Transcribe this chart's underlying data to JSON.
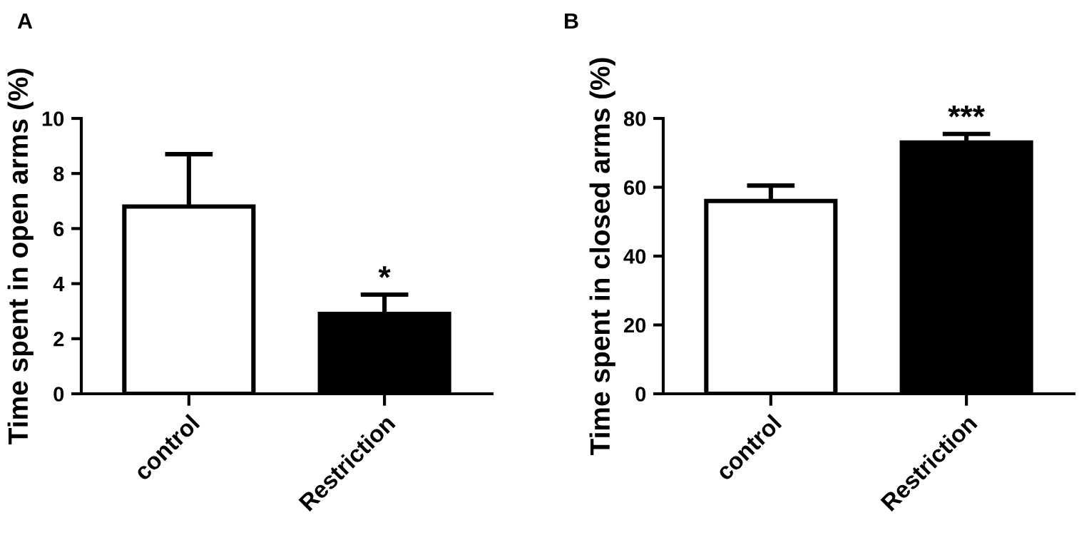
{
  "chart_data": [
    {
      "type": "bar",
      "title": "A",
      "ylabel": "Time spent in open arms (%)",
      "categories": [
        "control",
        "Restriction"
      ],
      "values": [
        6.8,
        2.9
      ],
      "colors": [
        "#ffffff",
        "#000000"
      ],
      "errors": [
        1.9,
        0.7
      ],
      "ylim": [
        0,
        10
      ],
      "yticks": [
        0,
        2,
        4,
        6,
        8,
        10
      ],
      "grid": false,
      "annotations": [
        {
          "text": "*",
          "x": "Restriction",
          "y": 3.6
        }
      ]
    },
    {
      "type": "bar",
      "title": "B",
      "ylabel": "Time spent in closed arms (%)",
      "categories": [
        "control",
        "Restriction"
      ],
      "values": [
        56,
        73
      ],
      "colors": [
        "#ffffff",
        "#000000"
      ],
      "errors": [
        4.5,
        2.5
      ],
      "ylim": [
        0,
        80
      ],
      "yticks": [
        0,
        20,
        40,
        60,
        80
      ],
      "grid": false,
      "annotations": [
        {
          "text": "***",
          "x": "Restriction",
          "y": 75.5
        }
      ]
    }
  ]
}
